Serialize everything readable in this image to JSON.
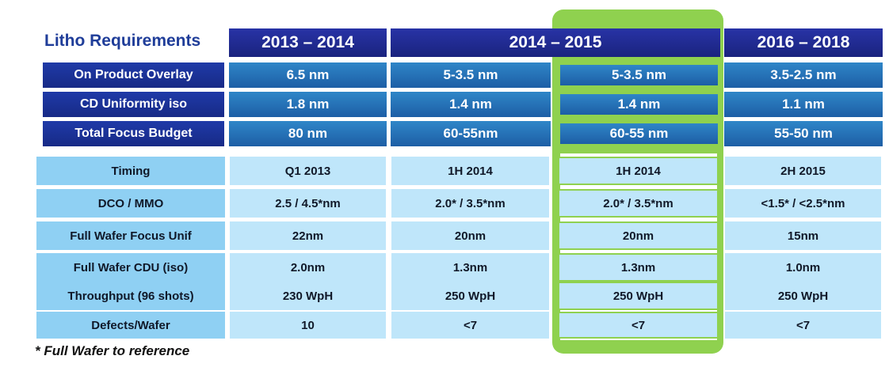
{
  "title": "Litho Requirements",
  "years": [
    "2013 – 2014",
    "2014 – 2015",
    "2016 – 2018"
  ],
  "dark_rows": [
    {
      "label": "On Product Overlay",
      "values": [
        "6.5 nm",
        "5-3.5 nm",
        "5-3.5  nm",
        "3.5-2.5  nm"
      ]
    },
    {
      "label": "CD Uniformity iso",
      "values": [
        "1.8 nm",
        "1.4 nm",
        "1.4  nm",
        "1.1  nm"
      ]
    },
    {
      "label": "Total Focus Budget",
      "values": [
        "80 nm",
        "60-55nm",
        "60-55  nm",
        "55-50 nm"
      ]
    }
  ],
  "light_rows": [
    {
      "label": "Timing",
      "values": [
        "Q1 2013",
        "1H 2014",
        "1H 2014",
        "2H 2015"
      ]
    },
    {
      "label": "DCO / MMO",
      "values": [
        "2.5 / 4.5*nm",
        "2.0* / 3.5*nm",
        "2.0* / 3.5*nm",
        "<1.5* / <2.5*nm"
      ]
    },
    {
      "label": "Full Wafer Focus Unif",
      "values": [
        "22nm",
        "20nm",
        "20nm",
        "15nm"
      ]
    },
    {
      "label": "Full Wafer CDU (iso)",
      "values": [
        "2.0nm",
        "1.3nm",
        "1.3nm",
        "1.0nm"
      ]
    },
    {
      "label": "Throughput (96 shots)",
      "values": [
        "230 WpH",
        "250 WpH",
        "250 WpH",
        "250 WpH"
      ]
    },
    {
      "label": "Defects/Wafer",
      "values": [
        "10",
        "<7",
        "<7",
        "<7"
      ]
    }
  ],
  "footnote": "* Full Wafer to reference",
  "colors": {
    "highlight": "#8fd14f",
    "header_dark": "#1a237e",
    "label_dark": "#172a86",
    "value_dark": "#1d5ea5",
    "label_light": "#8fd0f3",
    "value_light": "#bfe6fa"
  }
}
